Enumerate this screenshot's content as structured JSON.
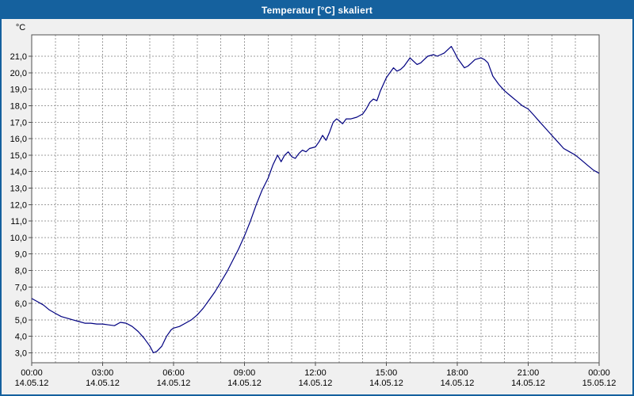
{
  "window": {
    "title": "Temperatur [°C] skaliert"
  },
  "colors": {
    "titlebar": "#15619E",
    "border": "#15619E",
    "window_bg": "#F0F0F0",
    "plot_bg": "#FFFFFF",
    "grid": "#9C9C9C",
    "axis": "#505050",
    "line": "#000080",
    "text": "#000000"
  },
  "chart_data": {
    "type": "line",
    "title": "Temperatur [°C] skaliert",
    "xlabel": "",
    "ylabel": "°C",
    "ylim": [
      2.4,
      22.3
    ],
    "x_range": [
      0,
      24
    ],
    "grid": true,
    "minor_x_grid_step_hours": 1,
    "y_ticks": [
      3,
      4,
      5,
      6,
      7,
      8,
      9,
      10,
      11,
      12,
      13,
      14,
      15,
      16,
      17,
      18,
      19,
      20,
      21
    ],
    "y_tick_labels": [
      "3,0",
      "4,0",
      "5,0",
      "6,0",
      "7,0",
      "8,0",
      "9,0",
      "10,0",
      "11,0",
      "12,0",
      "13,0",
      "14,0",
      "15,0",
      "16,0",
      "17,0",
      "18,0",
      "19,0",
      "20,0",
      "21,0"
    ],
    "x_major_ticks": [
      {
        "hour": 0,
        "time": "00:00",
        "date": "14.05.12"
      },
      {
        "hour": 3,
        "time": "03:00",
        "date": "14.05.12"
      },
      {
        "hour": 6,
        "time": "06:00",
        "date": "14.05.12"
      },
      {
        "hour": 9,
        "time": "09:00",
        "date": "14.05.12"
      },
      {
        "hour": 12,
        "time": "12:00",
        "date": "14.05.12"
      },
      {
        "hour": 15,
        "time": "15:00",
        "date": "14.05.12"
      },
      {
        "hour": 18,
        "time": "18:00",
        "date": "14.05.12"
      },
      {
        "hour": 21,
        "time": "21:00",
        "date": "14.05.12"
      },
      {
        "hour": 24,
        "time": "00:00",
        "date": "15.05.12"
      }
    ],
    "series": [
      {
        "name": "Temperatur [°C]",
        "x": [
          0,
          0.25,
          0.5,
          0.75,
          1,
          1.25,
          1.5,
          1.75,
          2,
          2.25,
          2.5,
          2.75,
          3,
          3.25,
          3.5,
          3.75,
          4,
          4.25,
          4.5,
          4.75,
          5,
          5.15,
          5.3,
          5.5,
          5.7,
          5.9,
          6,
          6.25,
          6.5,
          6.75,
          7,
          7.25,
          7.5,
          7.75,
          8,
          8.25,
          8.5,
          8.75,
          9,
          9.25,
          9.5,
          9.75,
          10,
          10.2,
          10.4,
          10.55,
          10.7,
          10.85,
          11,
          11.15,
          11.3,
          11.45,
          11.6,
          11.75,
          12,
          12.15,
          12.3,
          12.45,
          12.6,
          12.75,
          12.9,
          13,
          13.15,
          13.3,
          13.5,
          13.75,
          14,
          14.15,
          14.3,
          14.45,
          14.6,
          14.75,
          15,
          15.15,
          15.3,
          15.45,
          15.6,
          15.75,
          16,
          16.15,
          16.3,
          16.45,
          16.6,
          16.75,
          17,
          17.15,
          17.3,
          17.45,
          17.6,
          17.75,
          17.9,
          18,
          18.15,
          18.3,
          18.45,
          18.6,
          18.75,
          19,
          19.15,
          19.3,
          19.5,
          19.75,
          20,
          20.25,
          20.5,
          20.75,
          21,
          21.25,
          21.5,
          21.75,
          22,
          22.25,
          22.5,
          22.75,
          23,
          23.25,
          23.5,
          23.75,
          24
        ],
        "values": [
          6.3,
          6.1,
          5.9,
          5.6,
          5.4,
          5.2,
          5.1,
          5.0,
          4.9,
          4.8,
          4.8,
          4.75,
          4.75,
          4.7,
          4.65,
          4.85,
          4.8,
          4.6,
          4.3,
          3.9,
          3.4,
          3.0,
          3.1,
          3.4,
          4.0,
          4.4,
          4.5,
          4.6,
          4.8,
          5.0,
          5.3,
          5.7,
          6.2,
          6.7,
          7.3,
          7.9,
          8.6,
          9.3,
          10.1,
          11.0,
          12.0,
          12.9,
          13.6,
          14.4,
          15.0,
          14.6,
          15.0,
          15.2,
          14.9,
          14.8,
          15.1,
          15.3,
          15.2,
          15.4,
          15.5,
          15.8,
          16.2,
          15.9,
          16.4,
          17.0,
          17.2,
          17.1,
          16.9,
          17.2,
          17.2,
          17.3,
          17.5,
          17.8,
          18.2,
          18.4,
          18.3,
          18.9,
          19.7,
          20.0,
          20.3,
          20.1,
          20.2,
          20.4,
          20.9,
          20.7,
          20.5,
          20.6,
          20.8,
          21.0,
          21.1,
          21.0,
          21.1,
          21.2,
          21.4,
          21.6,
          21.2,
          20.9,
          20.6,
          20.3,
          20.4,
          20.6,
          20.8,
          20.9,
          20.8,
          20.6,
          19.8,
          19.3,
          18.9,
          18.6,
          18.3,
          18.0,
          17.8,
          17.4,
          17.0,
          16.6,
          16.2,
          15.8,
          15.4,
          15.2,
          15.0,
          14.7,
          14.4,
          14.1,
          13.9
        ]
      }
    ]
  }
}
